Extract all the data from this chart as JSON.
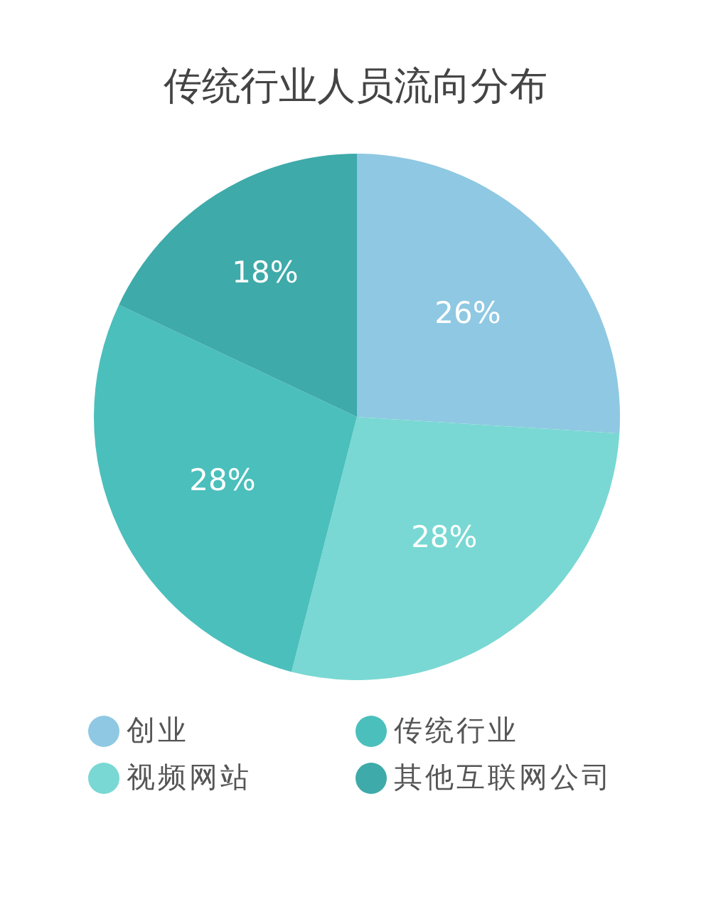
{
  "chart_data": {
    "type": "pie",
    "title": "传统行业人员流向分布",
    "categories": [
      "创业",
      "视频网站",
      "传统行业",
      "其他互联网公司"
    ],
    "values": [
      26,
      28,
      28,
      18
    ],
    "value_labels": [
      "26%",
      "28%",
      "28%",
      "18%"
    ],
    "colors": [
      "#8fc8e2",
      "#79d8d3",
      "#4bbfbc",
      "#3eaaa9"
    ],
    "legend": "bottom"
  }
}
